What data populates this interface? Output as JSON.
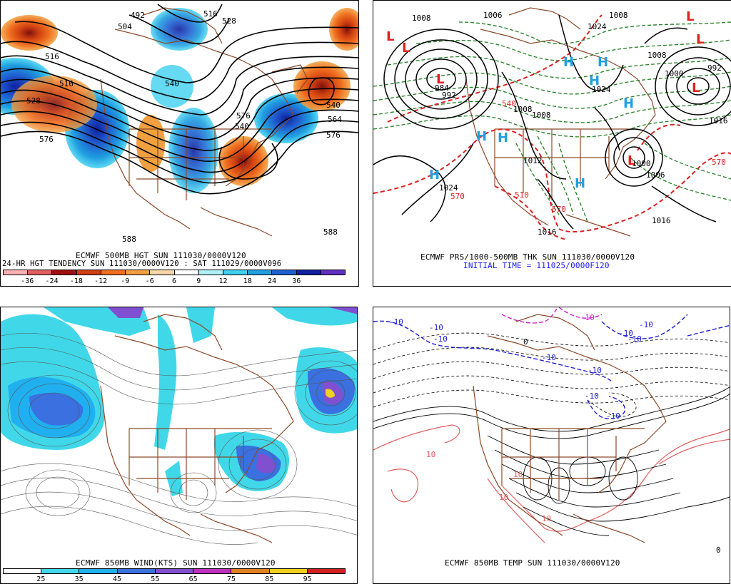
{
  "panels": {
    "p1": {
      "title": "ECMWF 500MB HGT SUN 111030/0000V120",
      "subtitle": "24-HR HGT TENDENCY SUN 111030/0000V120 : SAT 111029/0000V096",
      "colorbar": {
        "labels": [
          "-36",
          "-24",
          "-18",
          "-12",
          "-9",
          "-6",
          "6",
          "9",
          "12",
          "18",
          "24",
          "36"
        ],
        "colors": [
          "#ffb0b0",
          "#e06060",
          "#a01010",
          "#d04010",
          "#f07020",
          "#f0a040",
          "#f8d8a8",
          "#ffffff",
          "#b0f0f8",
          "#40d0f0",
          "#20a0e0",
          "#2060d0",
          "#1020a0",
          "#6030c0"
        ]
      },
      "contour_labels": [
        "492",
        "504",
        "516",
        "516",
        "528",
        "528",
        "540",
        "540",
        "540",
        "564",
        "576",
        "576",
        "576",
        "588",
        "588",
        "516"
      ]
    },
    "p2": {
      "title": "ECMWF PRS/1000-500MB THK SUN 111030/0000V120",
      "subtitle": "INITIAL TIME = 111025/0000F120",
      "pressure_labels": [
        "1008",
        "1006",
        "984",
        "992",
        "1024",
        "1008",
        "1008",
        "1008",
        "1000",
        "1024",
        "1006",
        "1016",
        "1016",
        "1008",
        "992",
        "1000",
        "1016",
        "1012",
        "1024"
      ],
      "thickness_labels": [
        "540",
        "570",
        "570",
        "570",
        "510"
      ],
      "highs": [
        "H",
        "H",
        "H",
        "H",
        "H",
        "H",
        "H",
        "H"
      ],
      "lows": [
        "L",
        "L",
        "L",
        "L",
        "L",
        "L",
        "L"
      ]
    },
    "p3": {
      "title": "ECMWF 850MB WIND(KTS) SUN 111030/0000V120",
      "colorbar": {
        "labels": [
          "25",
          "35",
          "45",
          "55",
          "65",
          "75",
          "85",
          "95"
        ],
        "colors": [
          "#ffffff",
          "#40d8e8",
          "#20b0f0",
          "#3a70e0",
          "#8050d0",
          "#c030c0",
          "#e08020",
          "#f0d020",
          "#d02020"
        ]
      }
    },
    "p4": {
      "title": "ECMWF 850MB TEMP SUN 111030/0000V120",
      "temp_labels": [
        "-10",
        "-10",
        "-10",
        "-10",
        "-10",
        "-10",
        "-10",
        "-10",
        "-10",
        "-10",
        "-10",
        "10",
        "10",
        "10",
        "10",
        "0",
        "0"
      ]
    }
  },
  "colors": {
    "coast": "#8b4a2b",
    "pressure": "#000000",
    "thickness_warm": "#e02020",
    "thickness_cold": "#208020",
    "temp_cold": "#2020d0",
    "temp_warm": "#e06060",
    "temp_very_cold": "#d020d0"
  }
}
